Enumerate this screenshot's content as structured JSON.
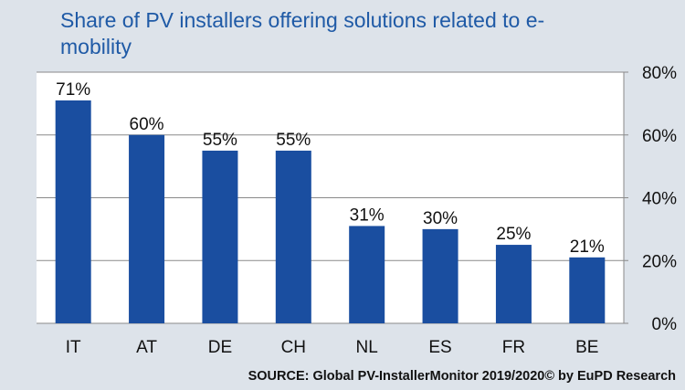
{
  "title": "Share of PV installers offering solutions related to e-mobility",
  "source": "SOURCE: Global PV-InstallerMonitor 2019/2020© by EuPD Research",
  "colors": {
    "bar": "#1a4ea0",
    "background": "#dde3ea",
    "plot_area": "#ffffff",
    "grid": "#8a8a8a",
    "title": "#1f5aa6"
  },
  "chart_data": {
    "type": "bar",
    "title": "Share of PV installers offering solutions related to e-mobility",
    "categories": [
      "IT",
      "AT",
      "DE",
      "CH",
      "NL",
      "ES",
      "FR",
      "BE"
    ],
    "values": [
      71,
      60,
      55,
      55,
      31,
      30,
      25,
      21
    ],
    "data_labels": [
      "71%",
      "60%",
      "55%",
      "55%",
      "31%",
      "30%",
      "25%",
      "21%"
    ],
    "xlabel": "",
    "ylabel": "",
    "ylim": [
      0,
      80
    ],
    "y_ticks": [
      0,
      20,
      40,
      60,
      80
    ],
    "y_tick_labels": [
      "0%",
      "20%",
      "40%",
      "60%",
      "80%"
    ],
    "y_axis_side": "right",
    "grid": true
  }
}
